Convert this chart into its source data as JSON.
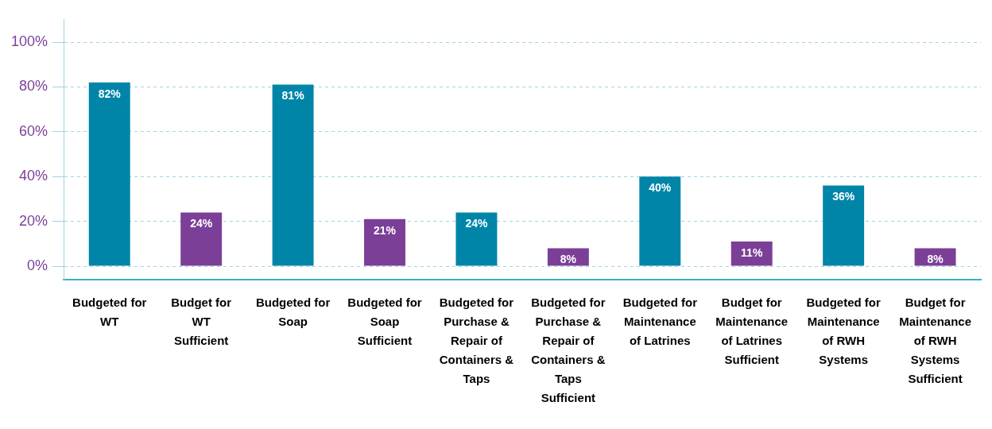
{
  "chart_data": {
    "type": "bar",
    "categories": [
      "Budgeted for WT",
      "Budget for WT Sufficient",
      "Budgeted for Soap",
      "Budgeted for Soap Sufficient",
      "Budgeted for Purchase & Repair of Containers & Taps",
      "Budgeted for Purchase & Repair of Containers & Taps Sufficient",
      "Budgeted for Maintenance of Latrines",
      "Budget for Maintenance of Latrines Sufficient",
      "Budgeted for Maintenance of RWH Systems",
      "Budget for Maintenance of RWH Systems Sufficient"
    ],
    "values": [
      82,
      24,
      81,
      21,
      24,
      8,
      40,
      11,
      36,
      8
    ],
    "colors": [
      "#0085a8",
      "#7b3f98",
      "#0085a8",
      "#7b3f98",
      "#0085a8",
      "#7b3f98",
      "#0085a8",
      "#7b3f98",
      "#0085a8",
      "#7b3f98"
    ],
    "ylim": [
      -6,
      110
    ],
    "yticks": [
      {
        "value": 0,
        "label": "0%"
      },
      {
        "value": 20,
        "label": "20%"
      },
      {
        "value": 40,
        "label": "40%"
      },
      {
        "value": 60,
        "label": "60%"
      },
      {
        "value": 80,
        "label": "80%"
      },
      {
        "value": 100,
        "label": "100%"
      }
    ],
    "value_labels": [
      "82%",
      "24%",
      "81%",
      "21%",
      "24%",
      "8%",
      "40%",
      "11%",
      "36%",
      "8%"
    ],
    "grid": "y",
    "legend": false
  }
}
